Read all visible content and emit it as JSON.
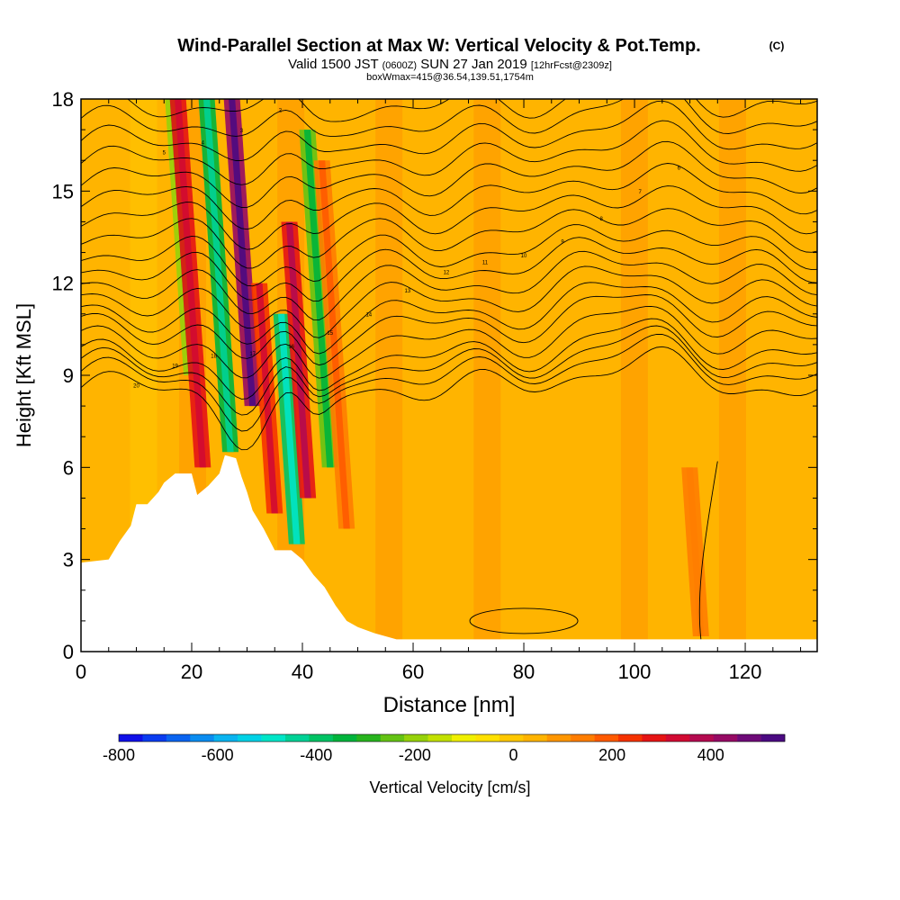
{
  "chart_data": {
    "type": "heatmap",
    "title": "Wind-Parallel Section at Max W: Vertical Velocity & Pot.Temp.",
    "title_mark": "(C)",
    "subtitle": {
      "valid": "Valid 1500 JST",
      "utc": "(0600Z)",
      "date": "SUN 27 Jan 2019",
      "forecast": "[12hrFcst@2309z]"
    },
    "subtitle2": "boxWmax=415@36.54,139.51,1754m",
    "xlabel": "Distance [nm]",
    "ylabel": "Height [Kft MSL]",
    "xlim": [
      0,
      133
    ],
    "ylim": [
      0,
      18
    ],
    "xticks": [
      "0",
      "20",
      "40",
      "60",
      "80",
      "100",
      "120"
    ],
    "yticks": [
      "0",
      "3",
      "6",
      "9",
      "12",
      "15",
      "18"
    ],
    "colorbar": {
      "label": "Vertical Velocity [cm/s]",
      "ticks": [
        "-800",
        "-600",
        "-400",
        "-200",
        "0",
        "200",
        "400"
      ],
      "range": [
        -800,
        550
      ],
      "colors": [
        "#1010e8",
        "#0a3cf0",
        "#0a64f0",
        "#0a8cf0",
        "#0ab4f0",
        "#00d2e6",
        "#00e6c8",
        "#00d296",
        "#00c364",
        "#00b43c",
        "#28b41e",
        "#64c314",
        "#96d20a",
        "#c3e100",
        "#f0f000",
        "#ffe100",
        "#ffc800",
        "#ffb400",
        "#ff9600",
        "#ff7d00",
        "#ff5a00",
        "#f53200",
        "#e61414",
        "#d20a32",
        "#b40a50",
        "#960a64",
        "#6e0a78",
        "#4b0a82"
      ]
    },
    "velocity_features": [
      {
        "x": 20,
        "z0": 9,
        "z1": 18,
        "w": -220
      },
      {
        "x": 22,
        "z0": 6,
        "z1": 18,
        "w": 280
      },
      {
        "x": 27,
        "z0": 6.5,
        "z1": 18,
        "w": -360
      },
      {
        "x": 31,
        "z0": 8,
        "z1": 18,
        "w": 420
      },
      {
        "x": 35,
        "z0": 4.5,
        "z1": 12,
        "w": 260
      },
      {
        "x": 39,
        "z0": 3.5,
        "z1": 11,
        "w": -400
      },
      {
        "x": 41,
        "z0": 5,
        "z1": 14,
        "w": 300
      },
      {
        "x": 45,
        "z0": 6,
        "z1": 17,
        "w": -260
      },
      {
        "x": 48,
        "z0": 4,
        "z1": 16,
        "w": 160
      },
      {
        "x": 112,
        "z0": 0.5,
        "z1": 6,
        "w": 120
      }
    ],
    "theta_contours": [
      {
        "z": 8.6,
        "label": "20"
      },
      {
        "z": 9.0,
        "label": "19"
      },
      {
        "z": 9.3,
        "label": "18"
      },
      {
        "z": 9.6,
        "label": "17"
      },
      {
        "z": 10.1,
        "label": "16"
      },
      {
        "z": 10.6,
        "label": "15"
      },
      {
        "z": 11.0,
        "label": "14"
      },
      {
        "z": 11.5,
        "label": "13"
      },
      {
        "z": 12.0,
        "label": "12"
      },
      {
        "z": 12.5,
        "label": "11"
      },
      {
        "z": 13.0,
        "label": "10"
      },
      {
        "z": 13.6,
        "label": "9"
      },
      {
        "z": 14.2,
        "label": "8"
      },
      {
        "z": 14.8,
        "label": "7"
      },
      {
        "z": 15.4,
        "label": "6"
      },
      {
        "z": 16.0,
        "label": "5"
      },
      {
        "z": 16.6,
        "label": "4"
      },
      {
        "z": 17.2,
        "label": "3"
      },
      {
        "z": 17.8,
        "label": "2"
      }
    ],
    "terrain": [
      [
        0,
        2.9
      ],
      [
        5,
        3.0
      ],
      [
        7,
        3.6
      ],
      [
        9,
        4.1
      ],
      [
        10,
        4.8
      ],
      [
        12,
        4.8
      ],
      [
        14,
        5.2
      ],
      [
        15,
        5.5
      ],
      [
        17,
        5.8
      ],
      [
        19,
        5.8
      ],
      [
        20,
        5.8
      ],
      [
        21,
        5.1
      ],
      [
        23,
        5.4
      ],
      [
        25,
        5.8
      ],
      [
        26,
        6.4
      ],
      [
        28,
        6.3
      ],
      [
        29,
        5.7
      ],
      [
        30,
        5.2
      ],
      [
        31,
        4.6
      ],
      [
        33,
        4.0
      ],
      [
        35,
        3.3
      ],
      [
        38,
        3.3
      ],
      [
        40,
        3.0
      ],
      [
        42,
        2.5
      ],
      [
        44,
        2.1
      ],
      [
        46,
        1.5
      ],
      [
        48,
        1.0
      ],
      [
        50,
        0.8
      ],
      [
        53,
        0.6
      ],
      [
        57,
        0.4
      ],
      [
        133,
        0.4
      ]
    ]
  }
}
